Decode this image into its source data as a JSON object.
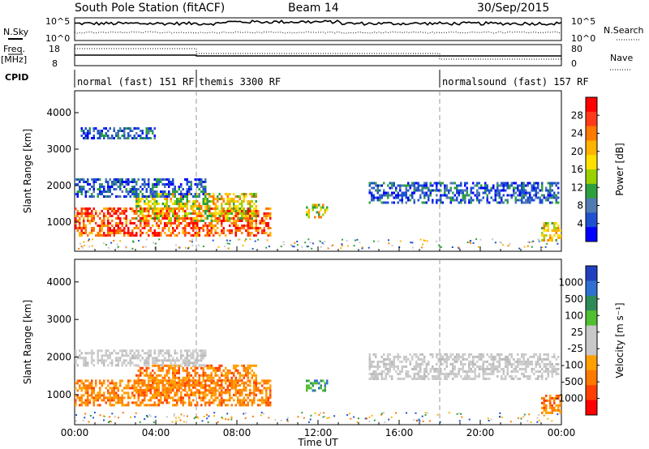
{
  "header": {
    "station": "South Pole Station (fitACF)",
    "beam": "Beam 14",
    "date": "30/Sep/2015"
  },
  "panels": {
    "nsky_label": "N.Sky",
    "nsky_ticks": [
      "10^5",
      "10^0"
    ],
    "nsearch_label": "N.Search",
    "nsearch_ticks": [
      "10^5",
      "10^0"
    ],
    "freq_label": "Freq.",
    "freq_unit": "[MHz]",
    "freq_ticks": [
      "18",
      "8"
    ],
    "nave_label": "Nave",
    "nave_ticks": [
      "80",
      "0"
    ],
    "cpid_label": "CPID",
    "cpid_segments": [
      {
        "label": "normal (fast) 151 RF",
        "start_h": 0,
        "end_h": 6
      },
      {
        "label": "themis 3300 RF",
        "start_h": 6,
        "end_h": 18
      },
      {
        "label": "normalsound (fast) 157 RF",
        "start_h": 18,
        "end_h": 24
      }
    ]
  },
  "chart_data": [
    {
      "type": "heatmap",
      "quantity": "power",
      "ylabel": "Slant Range [km]",
      "xlabel": "Time UT",
      "x_ticks": [
        "00:00",
        "04:00",
        "08:00",
        "12:00",
        "16:00",
        "20:00",
        "00:00"
      ],
      "y_ticks": [
        "1000",
        "2000",
        "3000",
        "4000"
      ],
      "xlim": [
        0,
        24
      ],
      "ylim": [
        200,
        4600
      ],
      "colorbar": {
        "label": "Power [dB]",
        "ticks": [
          "28",
          "24",
          "20",
          "16",
          "12",
          "8",
          "4"
        ],
        "colors": [
          "#ff0000",
          "#ff3a1a",
          "#ff7a00",
          "#ffb400",
          "#ffe000",
          "#9ad200",
          "#2ea03e",
          "#507bb0",
          "#1e50d0",
          "#0000ff"
        ]
      },
      "echo_regions": [
        {
          "t0": 0.0,
          "t1": 9.7,
          "r0": 600,
          "r1": 1400,
          "level": "high"
        },
        {
          "t0": 3.0,
          "t1": 9.0,
          "r0": 1000,
          "r1": 1800,
          "level": "mid"
        },
        {
          "t0": 0.0,
          "t1": 6.5,
          "r0": 1700,
          "r1": 2200,
          "level": "low"
        },
        {
          "t0": 0.3,
          "t1": 4.0,
          "r0": 3300,
          "r1": 3600,
          "level": "low"
        },
        {
          "t0": 14.5,
          "t1": 23.9,
          "r0": 1500,
          "r1": 2100,
          "level": "low"
        },
        {
          "t0": 11.4,
          "t1": 12.4,
          "r0": 1100,
          "r1": 1500,
          "level": "mid"
        },
        {
          "t0": 23.0,
          "t1": 24.0,
          "r0": 500,
          "r1": 1000,
          "level": "mid"
        }
      ]
    },
    {
      "type": "heatmap",
      "quantity": "velocity",
      "ylabel": "Slant Range [km]",
      "xlabel": "Time UT",
      "x_ticks": [
        "00:00",
        "04:00",
        "08:00",
        "12:00",
        "16:00",
        "20:00",
        "00:00"
      ],
      "y_ticks": [
        "1000",
        "2000",
        "3000",
        "4000"
      ],
      "xlim": [
        0,
        24
      ],
      "ylim": [
        200,
        4600
      ],
      "colorbar": {
        "label": "Velocity [m s⁻¹]",
        "ticks": [
          "1000",
          "500",
          "100",
          "25",
          "-25",
          "-100",
          "-500",
          "-1000"
        ],
        "colors": [
          "#2040c0",
          "#3070d0",
          "#2e8b57",
          "#50c030",
          "#c8c8c8",
          "#c8c8c8",
          "#ffa000",
          "#ff7a00",
          "#ff4000",
          "#ff0000"
        ]
      },
      "echo_regions": [
        {
          "t0": 0.0,
          "t1": 9.7,
          "r0": 700,
          "r1": 1400,
          "level": "negative"
        },
        {
          "t0": 3.0,
          "t1": 9.0,
          "r0": 1000,
          "r1": 1800,
          "level": "negative"
        },
        {
          "t0": 0.0,
          "t1": 6.5,
          "r0": 1800,
          "r1": 2200,
          "level": "ground"
        },
        {
          "t0": 14.5,
          "t1": 23.9,
          "r0": 1400,
          "r1": 2100,
          "level": "ground"
        },
        {
          "t0": 11.4,
          "t1": 12.4,
          "r0": 1100,
          "r1": 1400,
          "level": "positive"
        },
        {
          "t0": 23.0,
          "t1": 24.0,
          "r0": 500,
          "r1": 1000,
          "level": "negative"
        }
      ]
    }
  ]
}
